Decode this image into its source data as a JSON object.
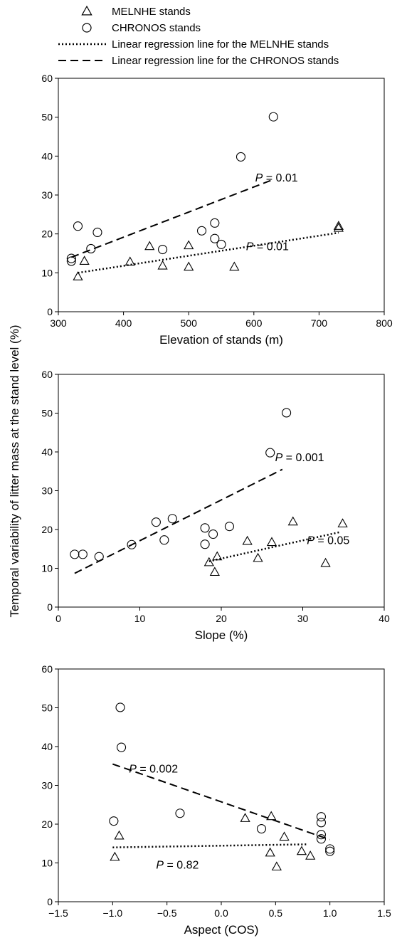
{
  "ylabel": "Temporal variability of litter mass at the stand level (%)",
  "legend": [
    {
      "marker": "triangle",
      "label": "MELNHE stands"
    },
    {
      "marker": "circle",
      "label": "CHRONOS stands"
    },
    {
      "marker": "dotted-line",
      "label": "Linear regression line for the MELNHE stands"
    },
    {
      "marker": "dashed-line",
      "label": "Linear regression line for the CHRONOS stands"
    }
  ],
  "chart_data": [
    {
      "type": "scatter",
      "xlabel": "Elevation of stands (m)",
      "xlim": [
        300,
        800
      ],
      "ylim": [
        0,
        60
      ],
      "xticks": [
        "300",
        "400",
        "500",
        "600",
        "700",
        "800"
      ],
      "yticks": [
        "0",
        "10",
        "20",
        "30",
        "40",
        "50",
        "60"
      ],
      "series": [
        {
          "name": "MELNHE stands",
          "marker": "triangle",
          "points": [
            [
              330,
              9
            ],
            [
              340,
              13
            ],
            [
              410,
              12.8
            ],
            [
              440,
              16.8
            ],
            [
              460,
              11.8
            ],
            [
              500,
              11.5
            ],
            [
              500,
              17
            ],
            [
              570,
              11.5
            ],
            [
              730,
              21.5
            ],
            [
              730,
              22
            ]
          ]
        },
        {
          "name": "CHRONOS stands",
          "marker": "circle",
          "points": [
            [
              320,
              13
            ],
            [
              320,
              13.7
            ],
            [
              330,
              22
            ],
            [
              350,
              16.2
            ],
            [
              360,
              20.4
            ],
            [
              460,
              16
            ],
            [
              520,
              20.8
            ],
            [
              540,
              22.8
            ],
            [
              540,
              18.8
            ],
            [
              550,
              17.3
            ],
            [
              580,
              39.8
            ],
            [
              630,
              50.1
            ]
          ]
        }
      ],
      "regressions": [
        {
          "series": "MELNHE stands",
          "style": "dotted",
          "x": [
            330,
            730
          ],
          "y": [
            10,
            20.3
          ]
        },
        {
          "series": "CHRONOS stands",
          "style": "dashed",
          "x": [
            320,
            630
          ],
          "y": [
            14,
            34
          ]
        }
      ],
      "annotations": [
        {
          "p_label": "P",
          "value_text": " = 0.01",
          "x": 602,
          "y": 33.5
        },
        {
          "p_label": "P",
          "value_text": " = 0.01",
          "x": 588,
          "y": 15.8
        }
      ]
    },
    {
      "type": "scatter",
      "xlabel": "Slope (%)",
      "xlim": [
        0,
        40
      ],
      "ylim": [
        0,
        60
      ],
      "xticks": [
        "0",
        "10",
        "20",
        "30",
        "40"
      ],
      "yticks": [
        "0",
        "10",
        "20",
        "30",
        "40",
        "50",
        "60"
      ],
      "series": [
        {
          "name": "MELNHE stands",
          "marker": "triangle",
          "points": [
            [
              18.5,
              11.5
            ],
            [
              19.2,
              9
            ],
            [
              19.5,
              13
            ],
            [
              23.2,
              17
            ],
            [
              24.5,
              12.6
            ],
            [
              26.2,
              16.7
            ],
            [
              28.8,
              22
            ],
            [
              32.8,
              11.3
            ],
            [
              34.9,
              21.5
            ]
          ]
        },
        {
          "name": "CHRONOS stands",
          "marker": "circle",
          "points": [
            [
              2,
              13.6
            ],
            [
              3,
              13.6
            ],
            [
              5,
              13
            ],
            [
              9,
              16.1
            ],
            [
              12,
              21.9
            ],
            [
              13,
              17.3
            ],
            [
              14,
              22.8
            ],
            [
              18,
              20.4
            ],
            [
              18,
              16.2
            ],
            [
              19,
              18.8
            ],
            [
              21,
              20.8
            ],
            [
              26,
              39.8
            ],
            [
              28,
              50.1
            ]
          ]
        }
      ],
      "regressions": [
        {
          "series": "MELNHE stands",
          "style": "dotted",
          "x": [
            18.5,
            34.5
          ],
          "y": [
            11.8,
            19.3
          ]
        },
        {
          "series": "CHRONOS stands",
          "style": "dashed",
          "x": [
            2,
            27.5
          ],
          "y": [
            8.7,
            35.5
          ]
        }
      ],
      "annotations": [
        {
          "p_label": "P",
          "value_text": " = 0.001",
          "x": 26.6,
          "y": 37.6
        },
        {
          "p_label": "P",
          "value_text": " = 0.05",
          "x": 30.5,
          "y": 16.2
        }
      ]
    },
    {
      "type": "scatter",
      "xlabel": "Aspect (COS)",
      "xlim": [
        -1.5,
        1.5
      ],
      "ylim": [
        0,
        60
      ],
      "xticks": [
        "−1.5",
        "−1.0",
        "−0.5",
        "0.0",
        "0.5",
        "1.0",
        "1.5"
      ],
      "yticks": [
        "0",
        "10",
        "20",
        "30",
        "40",
        "50",
        "60"
      ],
      "series": [
        {
          "name": "MELNHE stands",
          "marker": "triangle",
          "points": [
            [
              -0.98,
              11.5
            ],
            [
              -0.94,
              17
            ],
            [
              0.22,
              21.5
            ],
            [
              0.46,
              22
            ],
            [
              0.45,
              12.6
            ],
            [
              0.51,
              9
            ],
            [
              0.58,
              16.7
            ],
            [
              0.74,
              13
            ],
            [
              0.82,
              11.8
            ]
          ]
        },
        {
          "name": "CHRONOS stands",
          "marker": "circle",
          "points": [
            [
              -0.99,
              20.8
            ],
            [
              -0.93,
              50.1
            ],
            [
              -0.92,
              39.8
            ],
            [
              -0.38,
              22.8
            ],
            [
              0.37,
              18.8
            ],
            [
              0.92,
              21.9
            ],
            [
              0.92,
              20.4
            ],
            [
              0.92,
              17.3
            ],
            [
              0.92,
              16.2
            ],
            [
              1.0,
              13.6
            ],
            [
              1.0,
              13
            ]
          ]
        }
      ],
      "regressions": [
        {
          "series": "MELNHE stands",
          "style": "dotted",
          "x": [
            -1.0,
            0.8
          ],
          "y": [
            14,
            14.8
          ]
        },
        {
          "series": "CHRONOS stands",
          "style": "dashed",
          "x": [
            -1.0,
            1.0
          ],
          "y": [
            35.5,
            16
          ]
        }
      ],
      "annotations": [
        {
          "p_label": "P",
          "value_text": " = 0.002",
          "x": -0.85,
          "y": 33.3
        },
        {
          "p_label": "P",
          "value_text": " = 0.82",
          "x": -0.6,
          "y": 8.5
        }
      ]
    }
  ]
}
